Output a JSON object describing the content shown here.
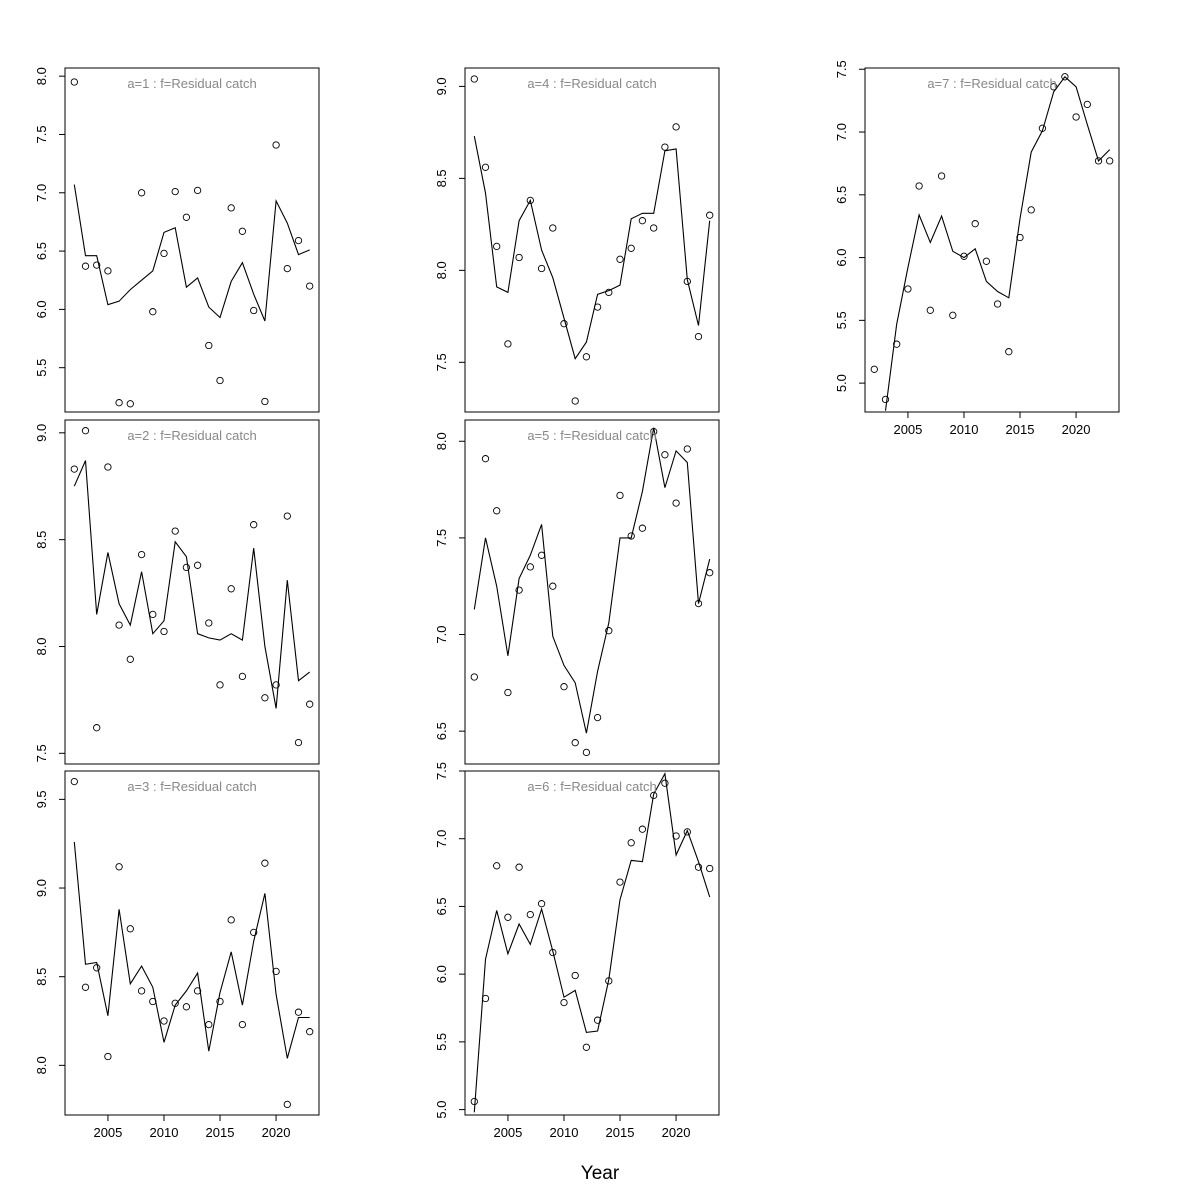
{
  "figure": {
    "xlabel": "Year"
  },
  "chart_data": [
    {
      "type": "line",
      "title": "a=1  :  f=Residual catch",
      "years": [
        2002,
        2003,
        2004,
        2005,
        2006,
        2007,
        2008,
        2009,
        2010,
        2011,
        2012,
        2013,
        2014,
        2015,
        2016,
        2017,
        2018,
        2019,
        2020,
        2021,
        2022,
        2023
      ],
      "observed": [
        7.95,
        6.37,
        6.38,
        6.33,
        5.2,
        5.19,
        7.0,
        5.98,
        6.48,
        7.01,
        6.79,
        7.02,
        5.69,
        5.39,
        6.87,
        6.67,
        5.99,
        5.21,
        7.41,
        6.35,
        6.59,
        6.2
      ],
      "fitted": [
        7.07,
        6.46,
        6.46,
        6.04,
        6.07,
        6.17,
        6.25,
        6.33,
        6.66,
        6.7,
        6.19,
        6.27,
        6.02,
        5.93,
        6.24,
        6.4,
        6.13,
        5.9,
        6.93,
        6.74,
        6.47,
        6.51
      ],
      "ylim": [
        5.12,
        8.07
      ],
      "yticks": [
        5.5,
        6.0,
        6.5,
        7.0,
        7.5,
        8.0
      ],
      "show_x_axis": false
    },
    {
      "type": "line",
      "title": "a=2  :  f=Residual catch",
      "years": [
        2002,
        2003,
        2004,
        2005,
        2006,
        2007,
        2008,
        2009,
        2010,
        2011,
        2012,
        2013,
        2014,
        2015,
        2016,
        2017,
        2018,
        2019,
        2020,
        2021,
        2022,
        2023
      ],
      "observed": [
        8.83,
        9.01,
        7.62,
        8.84,
        8.1,
        7.94,
        8.43,
        8.15,
        8.07,
        8.54,
        8.37,
        8.38,
        8.11,
        7.82,
        8.27,
        7.86,
        8.57,
        7.76,
        7.82,
        8.61,
        7.55,
        7.73
      ],
      "fitted": [
        8.75,
        8.87,
        8.15,
        8.44,
        8.2,
        8.1,
        8.35,
        8.06,
        8.12,
        8.49,
        8.42,
        8.06,
        8.04,
        8.03,
        8.06,
        8.03,
        8.46,
        8.0,
        7.71,
        8.31,
        7.84,
        7.88
      ],
      "ylim": [
        7.45,
        9.06
      ],
      "yticks": [
        7.5,
        8.0,
        8.5,
        9.0
      ],
      "show_x_axis": false
    },
    {
      "type": "line",
      "title": "a=3  :  f=Residual catch",
      "years": [
        2002,
        2003,
        2004,
        2005,
        2006,
        2007,
        2008,
        2009,
        2010,
        2011,
        2012,
        2013,
        2014,
        2015,
        2016,
        2017,
        2018,
        2019,
        2020,
        2021,
        2022,
        2023
      ],
      "observed": [
        9.6,
        8.44,
        8.55,
        8.05,
        9.12,
        8.77,
        8.42,
        8.36,
        8.25,
        8.35,
        8.33,
        8.42,
        8.23,
        8.36,
        8.82,
        8.23,
        8.75,
        9.14,
        8.53,
        7.78,
        8.3,
        8.19
      ],
      "fitted": [
        9.26,
        8.57,
        8.58,
        8.28,
        8.88,
        8.46,
        8.56,
        8.44,
        8.13,
        8.34,
        8.42,
        8.52,
        8.08,
        8.41,
        8.64,
        8.34,
        8.7,
        8.97,
        8.4,
        8.04,
        8.27,
        8.27
      ],
      "ylim": [
        7.72,
        9.66
      ],
      "yticks": [
        8.0,
        8.5,
        9.0,
        9.5
      ],
      "show_x_axis": true
    },
    {
      "type": "line",
      "title": "a=4  :  f=Residual catch",
      "years": [
        2002,
        2003,
        2004,
        2005,
        2006,
        2007,
        2008,
        2009,
        2010,
        2011,
        2012,
        2013,
        2014,
        2015,
        2016,
        2017,
        2018,
        2019,
        2020,
        2021,
        2022,
        2023
      ],
      "observed": [
        9.04,
        8.56,
        8.13,
        7.6,
        8.07,
        8.38,
        8.01,
        8.23,
        7.71,
        7.29,
        7.53,
        7.8,
        7.88,
        8.06,
        8.12,
        8.27,
        8.23,
        8.67,
        8.78,
        7.94,
        7.64,
        8.3
      ],
      "fitted": [
        8.73,
        8.42,
        7.91,
        7.88,
        8.27,
        8.38,
        8.11,
        7.96,
        7.74,
        7.52,
        7.61,
        7.87,
        7.89,
        7.92,
        8.28,
        8.31,
        8.31,
        8.65,
        8.66,
        7.95,
        7.7,
        8.27
      ],
      "ylim": [
        7.23,
        9.1
      ],
      "yticks": [
        7.5,
        8.0,
        8.5,
        9.0
      ],
      "show_x_axis": false
    },
    {
      "type": "line",
      "title": "a=5  :  f=Residual catch",
      "years": [
        2002,
        2003,
        2004,
        2005,
        2006,
        2007,
        2008,
        2009,
        2010,
        2011,
        2012,
        2013,
        2014,
        2015,
        2016,
        2017,
        2018,
        2019,
        2020,
        2021,
        2022,
        2023
      ],
      "observed": [
        6.78,
        7.91,
        7.64,
        6.7,
        7.23,
        7.35,
        7.41,
        7.25,
        6.73,
        6.44,
        6.39,
        6.57,
        7.02,
        7.72,
        7.51,
        7.55,
        8.05,
        7.93,
        7.68,
        7.96,
        7.16,
        7.32
      ],
      "fitted": [
        7.13,
        7.5,
        7.25,
        6.89,
        7.29,
        7.41,
        7.57,
        6.99,
        6.84,
        6.75,
        6.49,
        6.81,
        7.06,
        7.5,
        7.5,
        7.74,
        8.07,
        7.76,
        7.95,
        7.89,
        7.16,
        7.39
      ],
      "ylim": [
        6.33,
        8.11
      ],
      "yticks": [
        6.5,
        7.0,
        7.5,
        8.0
      ],
      "show_x_axis": false
    },
    {
      "type": "line",
      "title": "a=6  :  f=Residual catch",
      "years": [
        2002,
        2003,
        2004,
        2005,
        2006,
        2007,
        2008,
        2009,
        2010,
        2011,
        2012,
        2013,
        2014,
        2015,
        2016,
        2017,
        2018,
        2019,
        2020,
        2021,
        2022,
        2023
      ],
      "observed": [
        5.06,
        5.82,
        6.8,
        6.42,
        6.79,
        6.44,
        6.52,
        6.16,
        5.79,
        5.99,
        5.46,
        5.66,
        5.95,
        6.68,
        6.97,
        7.07,
        7.32,
        7.41,
        7.02,
        7.05,
        6.79,
        6.78
      ],
      "fitted": [
        4.98,
        6.11,
        6.47,
        6.15,
        6.37,
        6.22,
        6.48,
        6.17,
        5.83,
        5.88,
        5.57,
        5.58,
        5.96,
        6.55,
        6.84,
        6.83,
        7.33,
        7.48,
        6.88,
        7.06,
        6.83,
        6.57
      ],
      "ylim": [
        4.96,
        7.5
      ],
      "yticks": [
        5.0,
        5.5,
        6.0,
        6.5,
        7.0,
        7.5
      ],
      "show_x_axis": true
    },
    {
      "type": "line",
      "title": "a=7  :  f=Residual catch",
      "years": [
        2002,
        2003,
        2004,
        2005,
        2006,
        2007,
        2008,
        2009,
        2010,
        2011,
        2012,
        2013,
        2014,
        2015,
        2016,
        2017,
        2018,
        2019,
        2020,
        2021,
        2022,
        2023
      ],
      "observed": [
        5.11,
        4.87,
        5.31,
        5.75,
        6.57,
        5.58,
        6.65,
        5.54,
        6.01,
        6.27,
        5.97,
        5.63,
        5.25,
        6.16,
        6.38,
        7.03,
        7.36,
        7.44,
        7.12,
        7.22,
        6.77,
        6.77
      ],
      "fitted": [
        null,
        4.78,
        5.47,
        5.92,
        6.34,
        6.12,
        6.33,
        6.05,
        6.0,
        6.07,
        5.81,
        5.73,
        5.68,
        6.31,
        6.84,
        7.01,
        7.32,
        7.44,
        7.36,
        7.06,
        6.77,
        6.86
      ],
      "ylim": [
        4.77,
        7.51
      ],
      "yticks": [
        5.0,
        5.5,
        6.0,
        6.5,
        7.0,
        7.5
      ],
      "show_x_axis": true
    }
  ],
  "xticks": [
    2005,
    2010,
    2015,
    2020
  ]
}
